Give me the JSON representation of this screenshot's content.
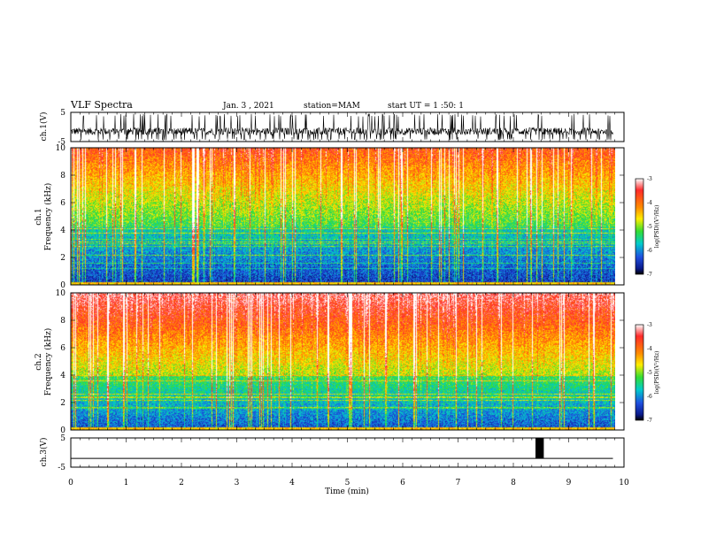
{
  "header": {
    "title": "VLF Spectra",
    "date": "Jan. 3 , 2021",
    "station": "station=MAM",
    "start": "start UT = 1 :50: 1"
  },
  "chart_data": [
    {
      "type": "line",
      "name": "waveform-ch1",
      "ylabel": "ch.1(V)",
      "ylim": [
        -5,
        5
      ],
      "yticks": [
        "5",
        "-5"
      ],
      "xlim": [
        0,
        10
      ],
      "description_visual": "dense black waveform, mostly between 0 and -3 V with bursts toward +4 and -5 V, ending near x=9.8"
    },
    {
      "type": "heatmap",
      "name": "spectrogram-ch1",
      "ylabel": "ch.1\nFrequency (kHz)",
      "ylabel_line1": "ch.1",
      "ylabel_line2": "Frequency (kHz)",
      "xlim": [
        0,
        10
      ],
      "ylim": [
        0,
        10
      ],
      "yticks": [
        "0",
        "2",
        "4",
        "6",
        "8",
        "10"
      ],
      "data_extent_x": 9.85,
      "colorbar": {
        "label": "log(PSD)(V²/Hz)",
        "range": [
          -7,
          -3
        ],
        "ticks": [
          "-3",
          "-4",
          "-5",
          "-6",
          "-7"
        ]
      },
      "levels": {
        "low_band_kHz": 4.2,
        "mid_band_kHz": 6.5
      }
    },
    {
      "type": "heatmap",
      "name": "spectrogram-ch2",
      "ylabel_line1": "ch.2",
      "ylabel_line2": "Frequency (kHz)",
      "xlim": [
        0,
        10
      ],
      "ylim": [
        0,
        10
      ],
      "yticks": [
        "0",
        "2",
        "4",
        "6",
        "8",
        "10"
      ],
      "data_extent_x": 9.85,
      "colorbar": {
        "label": "log(PSD)(V²/Hz)",
        "range": [
          -7,
          -3
        ],
        "ticks": [
          "-3",
          "-4",
          "-5",
          "-6",
          "-7"
        ]
      }
    },
    {
      "type": "line",
      "name": "waveform-ch3",
      "ylabel": "ch.3(V)",
      "ylim": [
        -5,
        5
      ],
      "yticks": [
        "5",
        "-5"
      ],
      "xlim": [
        0,
        10
      ],
      "xlabel": "Time (min)",
      "xticks": [
        "0",
        "1",
        "2",
        "3",
        "4",
        "5",
        "6",
        "7",
        "8",
        "9",
        "10"
      ],
      "baseline_V": -2,
      "pulse": {
        "x_start_min": 8.4,
        "x_end_min": 8.55,
        "y_top_V": 5,
        "y_bottom_V": -2
      }
    }
  ]
}
